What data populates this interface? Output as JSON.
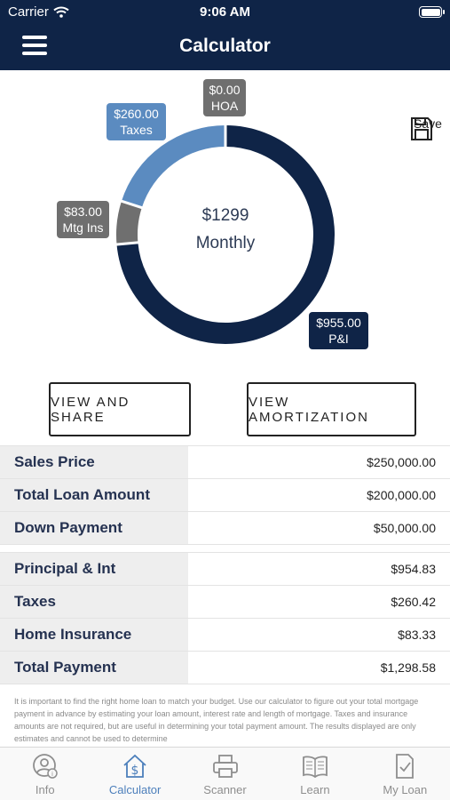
{
  "status": {
    "carrier": "Carrier",
    "time": "9:06 AM"
  },
  "nav": {
    "title": "Calculator"
  },
  "chart": {
    "center_amount": "$1299",
    "center_label": "Monthly",
    "segments": {
      "hoa": {
        "value": "$0.00",
        "name": "HOA"
      },
      "taxes": {
        "value": "$260.00",
        "name": "Taxes"
      },
      "mtg_ins": {
        "value": "$83.00",
        "name": "Mtg Ins"
      },
      "pi": {
        "value": "$955.00",
        "name": "P&I"
      }
    }
  },
  "chart_data": {
    "type": "pie",
    "categories": [
      "P&I",
      "Mtg Ins",
      "Taxes",
      "HOA"
    ],
    "values": [
      955.0,
      83.0,
      260.0,
      0.0
    ],
    "colors": [
      "#0f2447",
      "#6f6f6f",
      "#5b8bc0",
      "#6f6f6f"
    ],
    "title": "",
    "donut": true
  },
  "save": {
    "label": "Save"
  },
  "buttons": {
    "view_share": "VIEW AND SHARE",
    "view_amortization": "VIEW AMORTIZATION"
  },
  "loan_table": [
    {
      "label": "Sales Price",
      "value": "$250,000.00"
    },
    {
      "label": "Total Loan Amount",
      "value": "$200,000.00"
    },
    {
      "label": "Down Payment",
      "value": "$50,000.00"
    }
  ],
  "payment_table": [
    {
      "label": "Principal & Int",
      "value": "$954.83"
    },
    {
      "label": "Taxes",
      "value": "$260.42"
    },
    {
      "label": "Home Insurance",
      "value": "$83.33"
    },
    {
      "label": "Total Payment",
      "value": "$1,298.58"
    }
  ],
  "disclaimer": "It is important to find the right home loan to match your budget. Use our calculator to figure out your total mortgage payment in advance by estimating your loan amount, interest rate and length of mortgage. Taxes and insurance amounts are not required, but are useful in determining your total payment amount. The results displayed are only estimates and cannot be used to determine",
  "tabs": [
    {
      "label": "Info",
      "icon": "info-person-icon"
    },
    {
      "label": "Calculator",
      "icon": "house-dollar-icon",
      "active": true
    },
    {
      "label": "Scanner",
      "icon": "printer-icon"
    },
    {
      "label": "Learn",
      "icon": "open-book-icon"
    },
    {
      "label": "My Loan",
      "icon": "document-check-icon"
    }
  ]
}
